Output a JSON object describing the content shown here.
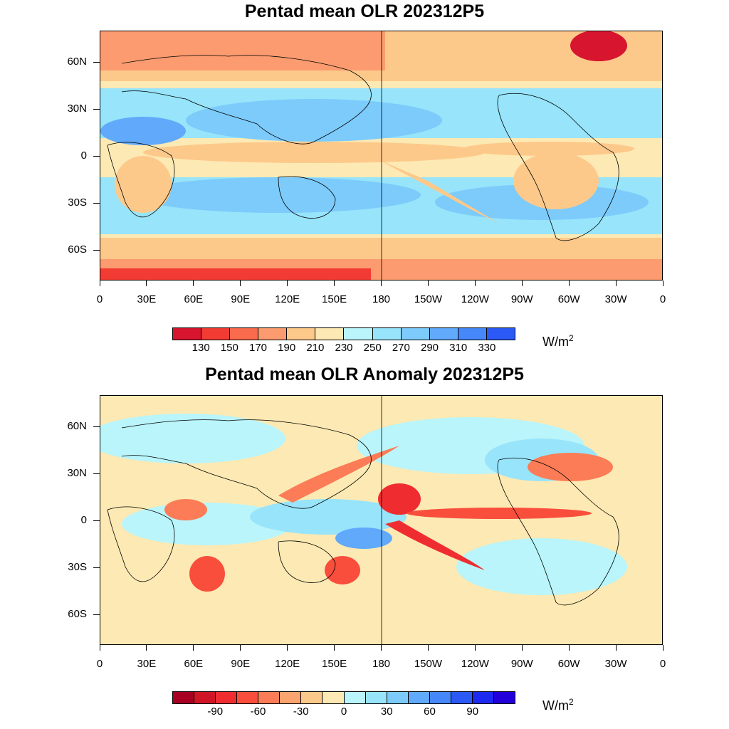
{
  "maps": [
    {
      "title": "Pentad mean OLR 202312P5",
      "colorbar": {
        "colors": [
          "#d7152e",
          "#f23b33",
          "#fa6a4d",
          "#fb9b6f",
          "#fdc98b",
          "#fde9b3",
          "#b9f5fb",
          "#97e4fb",
          "#7ccbfb",
          "#60a9fb",
          "#4687fa",
          "#2b59f5"
        ],
        "labels": [
          "130",
          "150",
          "170",
          "190",
          "210",
          "230",
          "250",
          "270",
          "290",
          "310",
          "330"
        ],
        "unit": "W/m",
        "unit_sup": "2"
      }
    },
    {
      "title": "Pentad mean OLR Anomaly 202312P5",
      "colorbar": {
        "colors": [
          "#a70022",
          "#d01626",
          "#ef2d31",
          "#f94e3c",
          "#fb7c56",
          "#fca46f",
          "#fdc98b",
          "#fde9b3",
          "#b9f5fb",
          "#97e4fb",
          "#7ccbfb",
          "#60a9fb",
          "#4687fa",
          "#2b59f5",
          "#1d2af0",
          "#2300d9"
        ],
        "labels": [
          "",
          "-90",
          "",
          "-60",
          "",
          "-30",
          "",
          "0",
          "",
          "30",
          "",
          "60",
          "",
          "90",
          ""
        ],
        "unit": "W/m",
        "unit_sup": "2"
      }
    }
  ],
  "x_ticks": [
    "0",
    "30E",
    "60E",
    "90E",
    "120E",
    "150E",
    "180",
    "150W",
    "120W",
    "90W",
    "60W",
    "30W",
    "0"
  ],
  "y_ticks": [
    "60N",
    "30N",
    "0",
    "30S",
    "60S"
  ]
}
